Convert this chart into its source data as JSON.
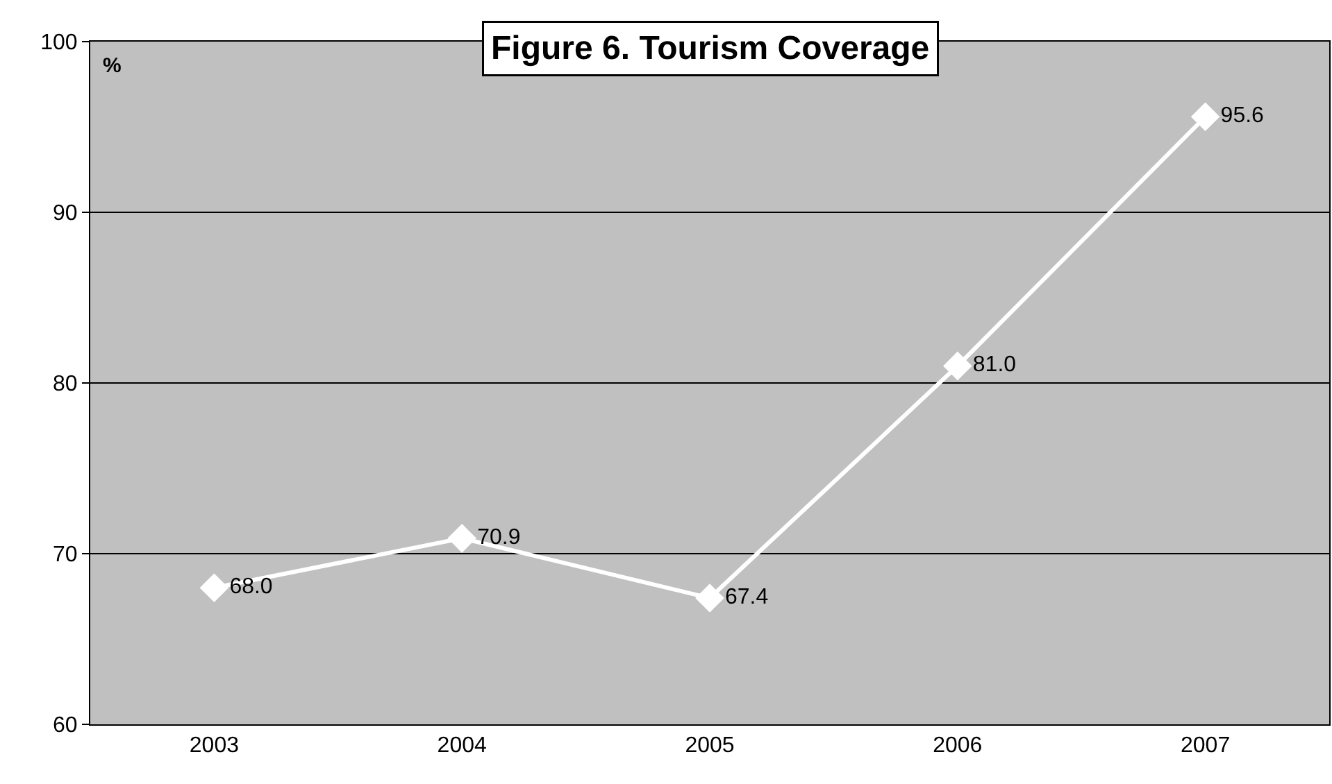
{
  "chart_data": {
    "type": "line",
    "title": "Figure 6. Tourism Coverage",
    "ylabel": "%",
    "categories": [
      "2003",
      "2004",
      "2005",
      "2006",
      "2007"
    ],
    "values": [
      68.0,
      70.9,
      67.4,
      81.0,
      95.6
    ],
    "value_labels": [
      "68.0",
      "70.9",
      "67.4",
      "81.0",
      "95.6"
    ],
    "color": "#ffffff",
    "marker": "diamond",
    "line_style": "solid",
    "ylim": [
      60,
      100
    ],
    "yticks": [
      60,
      70,
      80,
      90,
      100
    ],
    "grid": "y"
  }
}
